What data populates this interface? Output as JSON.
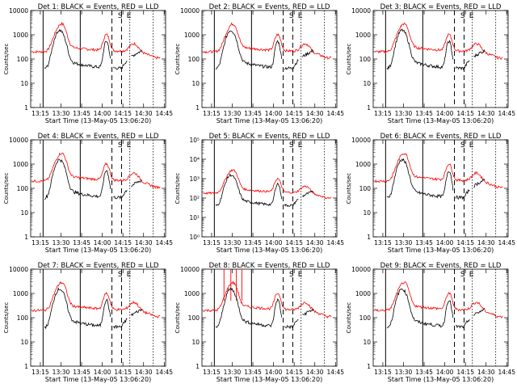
{
  "layout": {
    "cols": 3,
    "rows": 3
  },
  "common": {
    "xlabel": "Start Time (13-May-05 13:06:20)",
    "ylabel": "Counts/sec",
    "xticks": [
      "13:15",
      "13:30",
      "13:45",
      "14:00",
      "14:15",
      "14:30",
      "14:45"
    ],
    "yticks_default": [
      "1",
      "10",
      "100",
      "1000",
      "10000"
    ],
    "yticks_det5": [
      "10⁰",
      "10¹",
      "10²",
      "10³",
      "10⁴",
      "10⁵"
    ],
    "markers": [
      "S",
      "E"
    ],
    "colors": {
      "events": "#000000",
      "lld": "#ff0000"
    }
  },
  "chart_data": [
    {
      "type": "line",
      "title": "Det 1: BLACK = Events, RED = LLD",
      "ylog": true,
      "ylim": [
        1,
        10000
      ]
    },
    {
      "type": "line",
      "title": "Det 2: BLACK = Events, RED = LLD",
      "ylog": true,
      "ylim": [
        1,
        10000
      ]
    },
    {
      "type": "line",
      "title": "Det 3: BLACK = Events, RED = LLD",
      "ylog": true,
      "ylim": [
        1,
        10000
      ]
    },
    {
      "type": "line",
      "title": "Det 4: BLACK = Events, RED = LLD",
      "ylog": true,
      "ylim": [
        1,
        10000
      ]
    },
    {
      "type": "line",
      "title": "Det 5: BLACK = Events, RED = LLD",
      "ylog": true,
      "ylim": [
        1,
        100000
      ]
    },
    {
      "type": "line",
      "title": "Det 6: BLACK = Events, RED = LLD",
      "ylog": true,
      "ylim": [
        1,
        10000
      ]
    },
    {
      "type": "line",
      "title": "Det 7: BLACK = Events, RED = LLD",
      "ylog": true,
      "ylim": [
        1,
        10000
      ]
    },
    {
      "type": "line",
      "title": "Det 8: BLACK = Events, RED = LLD",
      "ylog": true,
      "ylim": [
        1,
        10000
      ]
    },
    {
      "type": "line",
      "title": "Det 9: BLACK = Events, RED = LLD",
      "ylog": true,
      "ylim": [
        1,
        10000
      ]
    }
  ]
}
